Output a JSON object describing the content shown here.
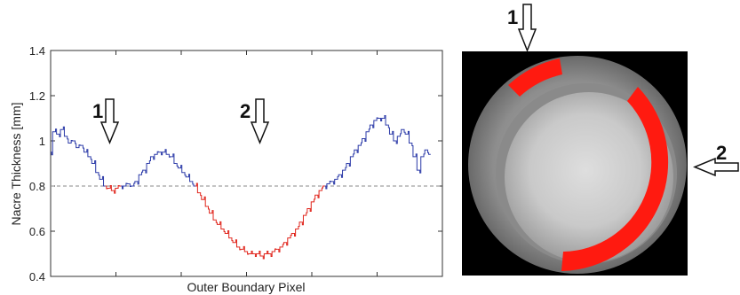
{
  "chart_data": {
    "type": "line",
    "xlabel": "Outer Boundary Pixel",
    "ylabel": "Nacre Thickness [mm]",
    "ylim": [
      0.4,
      1.4
    ],
    "yticks": [
      "0.4",
      "0.6",
      "0.8",
      "1",
      "1.2",
      "1.4"
    ],
    "xticks": [
      "",
      "",
      "",
      "",
      ""
    ],
    "xlim": [
      0,
      100
    ],
    "threshold": 0.8,
    "threshold_style": "dashed",
    "colors": {
      "above": "#2b3aa8",
      "below": "#e0241b",
      "threshold": "#888888"
    },
    "grid": false,
    "series": [
      {
        "values": [
          [
            0,
            0.95
          ],
          [
            1,
            1.04
          ],
          [
            2,
            1.03
          ],
          [
            3,
            1.05
          ],
          [
            4,
            1.02
          ],
          [
            5,
            0.99
          ],
          [
            6,
            1.0
          ],
          [
            7,
            0.97
          ],
          [
            8,
            0.98
          ],
          [
            9,
            0.95
          ],
          [
            10,
            0.93
          ],
          [
            11,
            0.9
          ],
          [
            12,
            0.86
          ],
          [
            13,
            0.83
          ],
          [
            14,
            0.8
          ],
          [
            15,
            0.79
          ],
          [
            16,
            0.78
          ],
          [
            17,
            0.79
          ],
          [
            18,
            0.8
          ],
          [
            19,
            0.8
          ],
          [
            20,
            0.81
          ],
          [
            21,
            0.8
          ],
          [
            22,
            0.82
          ],
          [
            23,
            0.85
          ],
          [
            24,
            0.87
          ],
          [
            25,
            0.9
          ],
          [
            26,
            0.93
          ],
          [
            27,
            0.94
          ],
          [
            28,
            0.95
          ],
          [
            29,
            0.95
          ],
          [
            30,
            0.94
          ],
          [
            31,
            0.93
          ],
          [
            32,
            0.9
          ],
          [
            33,
            0.88
          ],
          [
            34,
            0.86
          ],
          [
            35,
            0.84
          ],
          [
            36,
            0.82
          ],
          [
            37,
            0.8
          ],
          [
            38,
            0.77
          ],
          [
            39,
            0.74
          ],
          [
            40,
            0.71
          ],
          [
            41,
            0.68
          ],
          [
            42,
            0.65
          ],
          [
            43,
            0.63
          ],
          [
            44,
            0.61
          ],
          [
            45,
            0.59
          ],
          [
            46,
            0.57
          ],
          [
            47,
            0.55
          ],
          [
            48,
            0.53
          ],
          [
            49,
            0.52
          ],
          [
            50,
            0.51
          ],
          [
            51,
            0.5
          ],
          [
            52,
            0.5
          ],
          [
            53,
            0.5
          ],
          [
            54,
            0.49
          ],
          [
            55,
            0.5
          ],
          [
            56,
            0.5
          ],
          [
            57,
            0.51
          ],
          [
            58,
            0.52
          ],
          [
            59,
            0.53
          ],
          [
            60,
            0.55
          ],
          [
            61,
            0.57
          ],
          [
            62,
            0.59
          ],
          [
            63,
            0.61
          ],
          [
            64,
            0.64
          ],
          [
            65,
            0.67
          ],
          [
            66,
            0.7
          ],
          [
            67,
            0.73
          ],
          [
            68,
            0.76
          ],
          [
            69,
            0.78
          ],
          [
            70,
            0.8
          ],
          [
            71,
            0.81
          ],
          [
            72,
            0.82
          ],
          [
            73,
            0.83
          ],
          [
            74,
            0.85
          ],
          [
            75,
            0.87
          ],
          [
            76,
            0.9
          ],
          [
            77,
            0.93
          ],
          [
            78,
            0.96
          ],
          [
            79,
            0.98
          ],
          [
            80,
            1.01
          ],
          [
            81,
            1.04
          ],
          [
            82,
            1.07
          ],
          [
            83,
            1.09
          ],
          [
            84,
            1.1
          ],
          [
            85,
            1.1
          ],
          [
            86,
            1.07
          ],
          [
            87,
            1.03
          ],
          [
            88,
            1.0
          ],
          [
            89,
            1.02
          ],
          [
            90,
            1.05
          ],
          [
            91,
            1.03
          ],
          [
            92,
            0.99
          ],
          [
            93,
            0.93
          ],
          [
            94,
            0.87
          ],
          [
            95,
            0.93
          ],
          [
            96,
            0.96
          ],
          [
            97,
            0.94
          ]
        ]
      }
    ]
  },
  "annotations": {
    "chart_arrow_1": "1",
    "chart_arrow_2": "2",
    "image_arrow_1": "1",
    "image_arrow_2": "2"
  }
}
